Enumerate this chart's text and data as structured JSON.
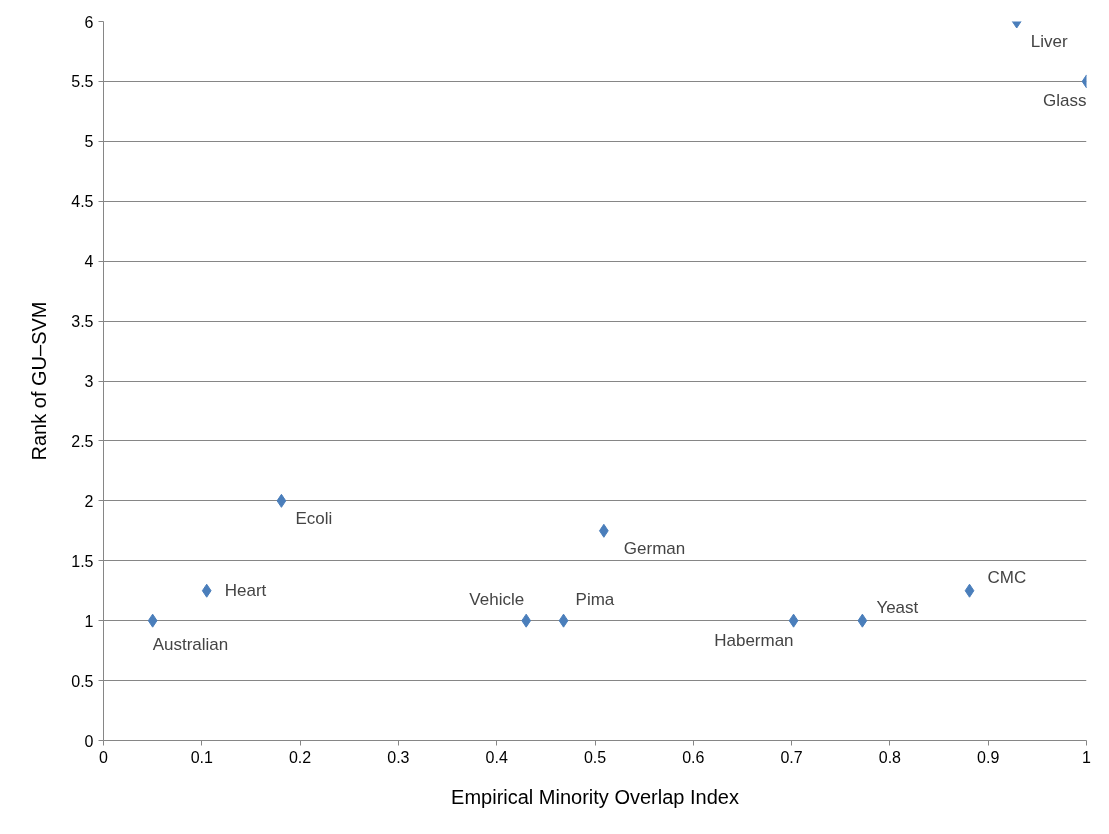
{
  "chart_data": {
    "type": "scatter",
    "xlabel": "Empirical Minority Overlap Index",
    "ylabel": "Rank of GU–SVM",
    "x": [
      0.05,
      0.105,
      0.181,
      0.43,
      0.468,
      0.509,
      0.702,
      0.772,
      0.881,
      0.929,
      1.0
    ],
    "series": [
      {
        "color": "#4a7ebb",
        "values": [
          1,
          1.25,
          2,
          1,
          1,
          1.75,
          1,
          1,
          1.25,
          6,
          5.5
        ]
      }
    ],
    "annotations": [
      {
        "text": "Australian",
        "x": 0.05,
        "y": 1
      },
      {
        "text": "Heart",
        "x": 0.105,
        "y": 1.25
      },
      {
        "text": "Ecoli",
        "x": 0.181,
        "y": 2
      },
      {
        "text": "Vehicle",
        "x": 0.43,
        "y": 1
      },
      {
        "text": "Pima",
        "x": 0.468,
        "y": 1
      },
      {
        "text": "German",
        "x": 0.509,
        "y": 1.75
      },
      {
        "text": "Haberman",
        "x": 0.702,
        "y": 1
      },
      {
        "text": "Yeast",
        "x": 0.772,
        "y": 1
      },
      {
        "text": "CMC",
        "x": 0.881,
        "y": 1.25
      },
      {
        "text": "Liver",
        "x": 0.929,
        "y": 6
      },
      {
        "text": "Glass",
        "x": 1.0,
        "y": 5.5
      }
    ],
    "xlim": [
      0,
      1
    ],
    "ylim": [
      0,
      6
    ],
    "xticks": [
      0,
      0.1,
      0.2,
      0.3,
      0.4,
      0.5,
      0.6,
      0.7,
      0.8,
      0.9,
      1
    ],
    "yticks": [
      0,
      0.5,
      1,
      1.5,
      2,
      2.5,
      3,
      3.5,
      4,
      4.5,
      5,
      5.5,
      6
    ],
    "grid": "y",
    "marker": "diamond"
  }
}
